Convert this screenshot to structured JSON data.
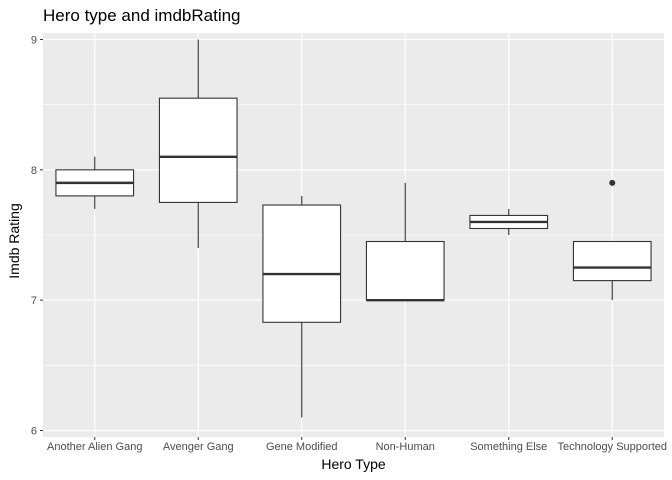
{
  "chart_data": {
    "type": "boxplot",
    "title": "Hero type and imdbRating",
    "xlabel": "Hero Type",
    "ylabel": "Imdb Rating",
    "ylim": [
      5.95,
      9.05
    ],
    "yticks": [
      6,
      7,
      8,
      9
    ],
    "grid": true,
    "categories": [
      "Another Alien Gang",
      "Avenger Gang",
      "Gene Modified",
      "Non-Human",
      "Something Else",
      "Technology Supported"
    ],
    "boxes": [
      {
        "category": "Another Alien Gang",
        "min": 7.7,
        "q1": 7.8,
        "median": 7.9,
        "q3": 8.0,
        "max": 8.1,
        "outliers": []
      },
      {
        "category": "Avenger Gang",
        "min": 7.4,
        "q1": 7.75,
        "median": 8.1,
        "q3": 8.55,
        "max": 9.0,
        "outliers": []
      },
      {
        "category": "Gene Modified",
        "min": 6.1,
        "q1": 6.83,
        "median": 7.2,
        "q3": 7.73,
        "max": 7.8,
        "outliers": []
      },
      {
        "category": "Non-Human",
        "min": 7.0,
        "q1": 7.0,
        "median": 7.0,
        "q3": 7.45,
        "max": 7.9,
        "outliers": []
      },
      {
        "category": "Something Else",
        "min": 7.5,
        "q1": 7.55,
        "median": 7.6,
        "q3": 7.65,
        "max": 7.7,
        "outliers": []
      },
      {
        "category": "Technology Supported",
        "min": 7.0,
        "q1": 7.15,
        "median": 7.25,
        "q3": 7.45,
        "max": 7.45,
        "outliers": [
          7.9
        ]
      }
    ],
    "colors": {
      "panel": "#ebebeb",
      "grid_major": "#ffffff",
      "box_fill": "#ffffff",
      "box_line": "#333333",
      "tick_text": "#4d4d4d"
    }
  }
}
